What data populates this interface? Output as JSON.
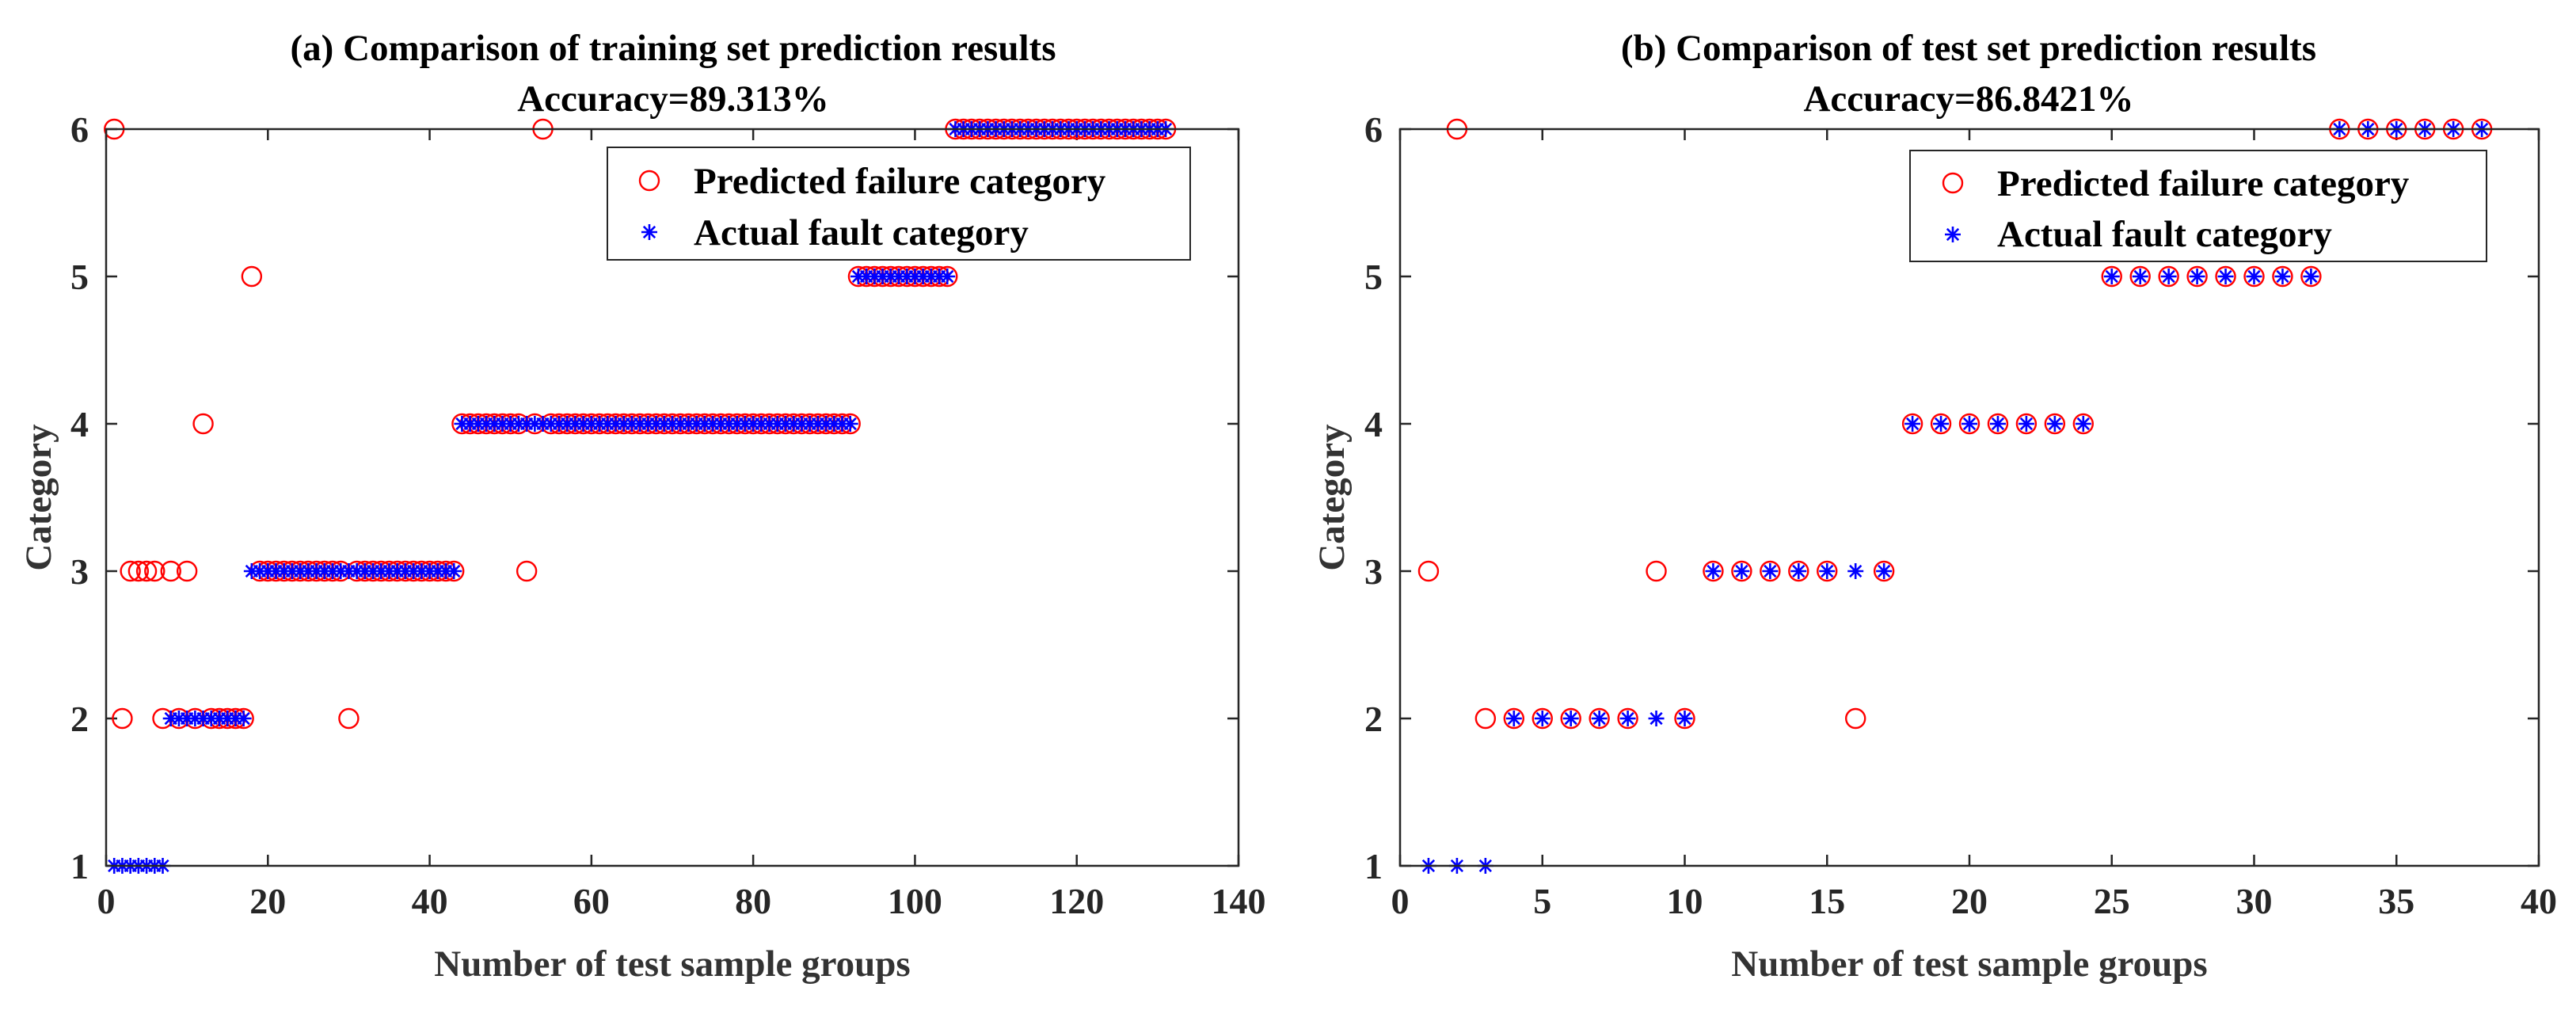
{
  "chart_data": [
    {
      "type": "scatter",
      "title": "(a) Comparison of training set prediction results",
      "subtitle": "Accuracy=89.313%",
      "xlabel": "Number of test sample groups",
      "ylabel": "Category",
      "xlim": [
        0,
        140
      ],
      "ylim": [
        1,
        6
      ],
      "xticks": [
        "0",
        "20",
        "40",
        "60",
        "80",
        "100",
        "120",
        "140"
      ],
      "yticks": [
        "1",
        "2",
        "3",
        "4",
        "5",
        "6"
      ],
      "legend": {
        "position": "top-right"
      },
      "series": [
        {
          "name": "Predicted failure category",
          "marker": "circle",
          "color": "#ff0000",
          "x": [
            1,
            2,
            3,
            4,
            5,
            6,
            7,
            8,
            9,
            10,
            11,
            12,
            13,
            14,
            15,
            16,
            17,
            18,
            19,
            20,
            21,
            22,
            23,
            24,
            25,
            26,
            27,
            28,
            29,
            30,
            31,
            32,
            33,
            34,
            35,
            36,
            37,
            38,
            39,
            40,
            41,
            42,
            43,
            44,
            45,
            46,
            47,
            48,
            49,
            50,
            51,
            52,
            53,
            54,
            55,
            56,
            57,
            58,
            59,
            60,
            61,
            62,
            63,
            64,
            65,
            66,
            67,
            68,
            69,
            70,
            71,
            72,
            73,
            74,
            75,
            76,
            77,
            78,
            79,
            80,
            81,
            82,
            83,
            84,
            85,
            86,
            87,
            88,
            89,
            90,
            91,
            92,
            93,
            94,
            95,
            96,
            97,
            98,
            99,
            100,
            101,
            102,
            103,
            104,
            105,
            106,
            107,
            108,
            109,
            110,
            111,
            112,
            113,
            114,
            115,
            116,
            117,
            118,
            119,
            120,
            121,
            122,
            123,
            124,
            125,
            126,
            127,
            128,
            129,
            130,
            131
          ],
          "y": [
            6,
            2,
            3,
            3,
            3,
            3,
            2,
            3,
            2,
            3,
            2,
            4,
            2,
            2,
            2,
            2,
            2,
            5,
            3,
            3,
            3,
            3,
            3,
            3,
            3,
            3,
            3,
            3,
            3,
            2,
            3,
            3,
            3,
            3,
            3,
            3,
            3,
            3,
            3,
            3,
            3,
            3,
            3,
            4,
            4,
            4,
            4,
            4,
            4,
            4,
            4,
            3,
            4,
            6,
            4,
            4,
            4,
            4,
            4,
            4,
            4,
            4,
            4,
            4,
            4,
            4,
            4,
            4,
            4,
            4,
            4,
            4,
            4,
            4,
            4,
            4,
            4,
            4,
            4,
            4,
            4,
            4,
            4,
            4,
            4,
            4,
            4,
            4,
            4,
            4,
            4,
            4,
            5,
            5,
            5,
            5,
            5,
            5,
            5,
            5,
            5,
            5,
            5,
            5,
            6,
            6,
            6,
            6,
            6,
            6,
            6,
            6,
            6,
            6,
            6,
            6,
            6,
            6,
            6,
            6,
            6,
            6,
            6,
            6,
            6,
            6,
            6,
            6,
            6,
            6,
            6
          ]
        },
        {
          "name": "Actual fault category",
          "marker": "asterisk",
          "color": "#0000ff",
          "x": [
            1,
            2,
            3,
            4,
            5,
            6,
            7,
            8,
            9,
            10,
            11,
            12,
            13,
            14,
            15,
            16,
            17,
            18,
            19,
            20,
            21,
            22,
            23,
            24,
            25,
            26,
            27,
            28,
            29,
            30,
            31,
            32,
            33,
            34,
            35,
            36,
            37,
            38,
            39,
            40,
            41,
            42,
            43,
            44,
            45,
            46,
            47,
            48,
            49,
            50,
            51,
            52,
            53,
            54,
            55,
            56,
            57,
            58,
            59,
            60,
            61,
            62,
            63,
            64,
            65,
            66,
            67,
            68,
            69,
            70,
            71,
            72,
            73,
            74,
            75,
            76,
            77,
            78,
            79,
            80,
            81,
            82,
            83,
            84,
            85,
            86,
            87,
            88,
            89,
            90,
            91,
            92,
            93,
            94,
            95,
            96,
            97,
            98,
            99,
            100,
            101,
            102,
            103,
            104,
            105,
            106,
            107,
            108,
            109,
            110,
            111,
            112,
            113,
            114,
            115,
            116,
            117,
            118,
            119,
            120,
            121,
            122,
            123,
            124,
            125,
            126,
            127,
            128,
            129,
            130,
            131
          ],
          "y": [
            1,
            1,
            1,
            1,
            1,
            1,
            1,
            2,
            2,
            2,
            2,
            2,
            2,
            2,
            2,
            2,
            2,
            3,
            3,
            3,
            3,
            3,
            3,
            3,
            3,
            3,
            3,
            3,
            3,
            3,
            3,
            3,
            3,
            3,
            3,
            3,
            3,
            3,
            3,
            3,
            3,
            3,
            3,
            4,
            4,
            4,
            4,
            4,
            4,
            4,
            4,
            4,
            4,
            4,
            4,
            4,
            4,
            4,
            4,
            4,
            4,
            4,
            4,
            4,
            4,
            4,
            4,
            4,
            4,
            4,
            4,
            4,
            4,
            4,
            4,
            4,
            4,
            4,
            4,
            4,
            4,
            4,
            4,
            4,
            4,
            4,
            4,
            4,
            4,
            4,
            4,
            4,
            5,
            5,
            5,
            5,
            5,
            5,
            5,
            5,
            5,
            5,
            5,
            5,
            6,
            6,
            6,
            6,
            6,
            6,
            6,
            6,
            6,
            6,
            6,
            6,
            6,
            6,
            6,
            6,
            6,
            6,
            6,
            6,
            6,
            6,
            6,
            6,
            6,
            6,
            6
          ]
        }
      ]
    },
    {
      "type": "scatter",
      "title": "(b) Comparison of test set prediction results",
      "subtitle": "Accuracy=86.8421%",
      "xlabel": "Number of test sample groups",
      "ylabel": "Category",
      "xlim": [
        0,
        40
      ],
      "ylim": [
        1,
        6
      ],
      "xticks": [
        "0",
        "5",
        "10",
        "15",
        "20",
        "25",
        "30",
        "35",
        "40"
      ],
      "yticks": [
        "1",
        "2",
        "3",
        "4",
        "5",
        "6"
      ],
      "legend": {
        "position": "top-right"
      },
      "series": [
        {
          "name": "Predicted failure category",
          "marker": "circle",
          "color": "#ff0000",
          "x": [
            1,
            2,
            3,
            4,
            5,
            6,
            7,
            8,
            9,
            10,
            11,
            12,
            13,
            14,
            15,
            16,
            17,
            18,
            19,
            20,
            21,
            22,
            23,
            24,
            25,
            26,
            27,
            28,
            29,
            30,
            31,
            32,
            33,
            34,
            35,
            36,
            37,
            38
          ],
          "y": [
            3,
            6,
            2,
            2,
            2,
            2,
            2,
            2,
            3,
            2,
            3,
            3,
            3,
            3,
            3,
            2,
            3,
            4,
            4,
            4,
            4,
            4,
            4,
            4,
            5,
            5,
            5,
            5,
            5,
            5,
            5,
            5,
            6,
            6,
            6,
            6,
            6,
            6
          ]
        },
        {
          "name": "Actual fault category",
          "marker": "asterisk",
          "color": "#0000ff",
          "x": [
            1,
            2,
            3,
            4,
            5,
            6,
            7,
            8,
            9,
            10,
            11,
            12,
            13,
            14,
            15,
            16,
            17,
            18,
            19,
            20,
            21,
            22,
            23,
            24,
            25,
            26,
            27,
            28,
            29,
            30,
            31,
            32,
            33,
            34,
            35,
            36,
            37,
            38
          ],
          "y": [
            1,
            1,
            1,
            2,
            2,
            2,
            2,
            2,
            2,
            2,
            3,
            3,
            3,
            3,
            3,
            3,
            3,
            4,
            4,
            4,
            4,
            4,
            4,
            4,
            5,
            5,
            5,
            5,
            5,
            5,
            5,
            5,
            6,
            6,
            6,
            6,
            6,
            6
          ]
        }
      ]
    }
  ]
}
